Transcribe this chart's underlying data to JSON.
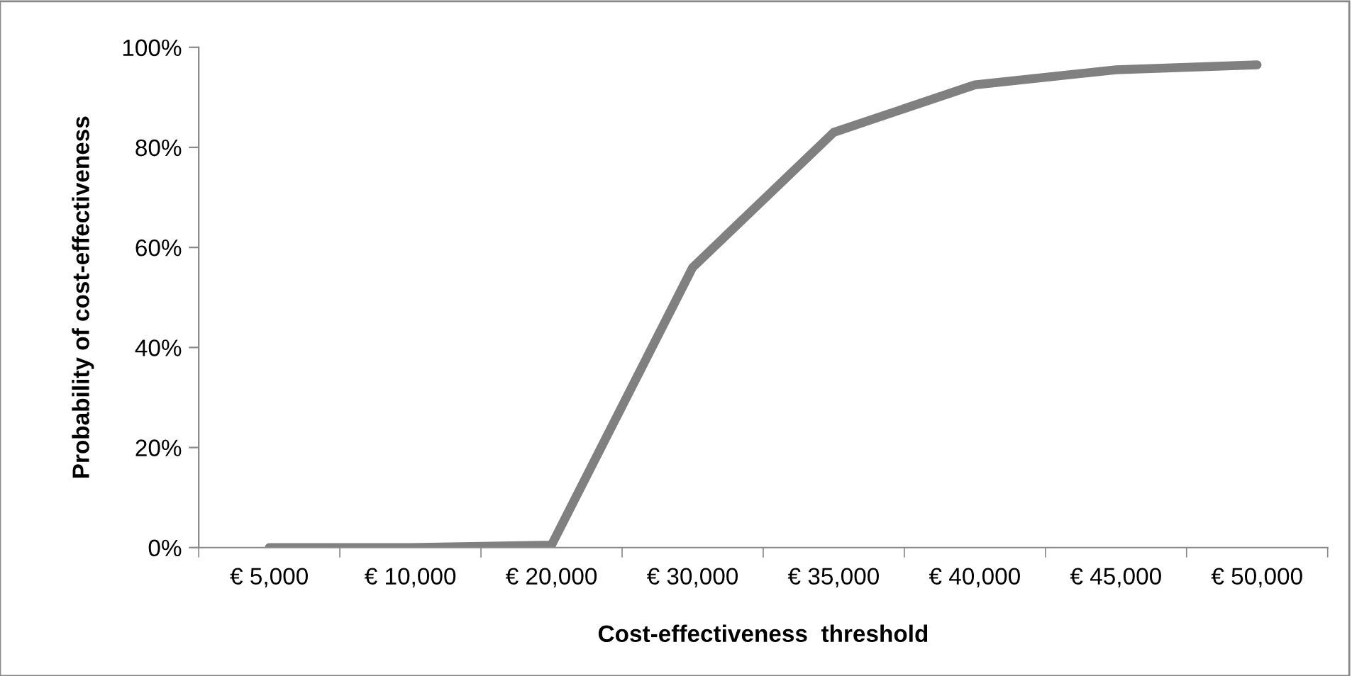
{
  "chart_data": {
    "type": "line",
    "xlabel": "Cost-effectiveness  threshold",
    "ylabel": "Probability of cost-effectiveness",
    "categories": [
      "€ 5,000",
      "€ 10,000",
      "€ 20,000",
      "€ 30,000",
      "€ 35,000",
      "€ 40,000",
      "€ 45,000",
      "€ 50,000"
    ],
    "series": [
      {
        "color": "#808080",
        "values": [
          0,
          0,
          0.5,
          56,
          83,
          92.5,
          95.5,
          96.5
        ]
      }
    ],
    "ylim": [
      0,
      100
    ],
    "yticks": [
      {
        "value": 0,
        "label": "0%"
      },
      {
        "value": 20,
        "label": "20%"
      },
      {
        "value": 40,
        "label": "40%"
      },
      {
        "value": 60,
        "label": "60%"
      },
      {
        "value": 80,
        "label": "80%"
      },
      {
        "value": 100,
        "label": "100%"
      }
    ],
    "grid": false,
    "legend": false,
    "marker": "none",
    "line_style": "solid"
  }
}
